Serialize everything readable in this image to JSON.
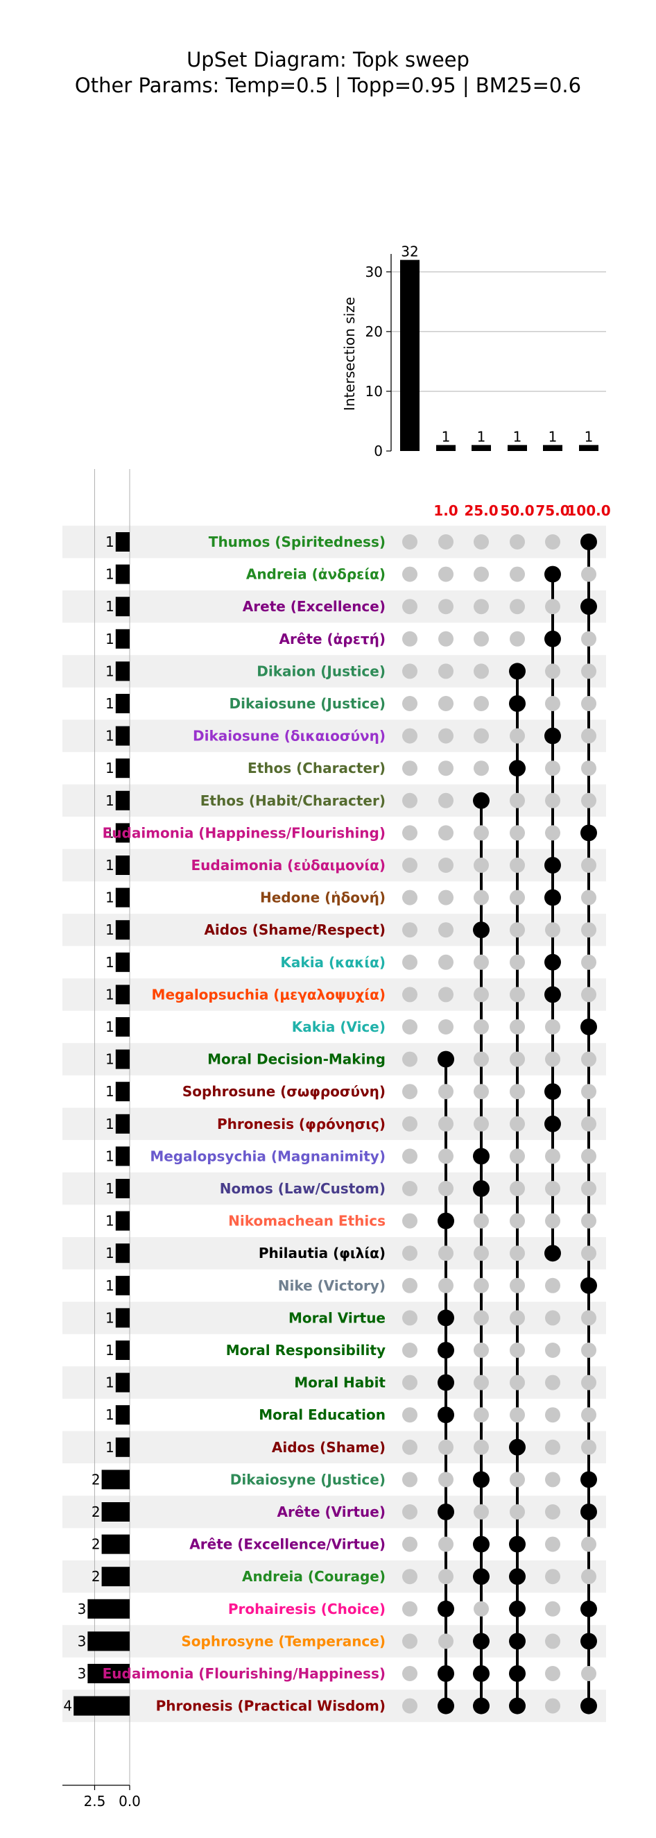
{
  "title": {
    "line1": "UpSet Diagram: Topk sweep",
    "line2": "Other Params: Temp=0.5 | Topp=0.95 | BM25=0.6"
  },
  "colors": {
    "bar": "#000000",
    "dot_active": "#000000",
    "dot_inactive": "#c8c8c8",
    "stripe": "#f0f0f0",
    "column_label": "#e8000b"
  },
  "chart_data": {
    "type": "upset",
    "intersections": {
      "ylabel": "Intersection size",
      "ylim": [
        0,
        33
      ],
      "yticks": [
        0,
        10,
        20,
        30
      ],
      "grid": true,
      "columns": [
        {
          "label": "",
          "size": 32
        },
        {
          "label": "1.0",
          "size": 1
        },
        {
          "label": "25.0",
          "size": 1
        },
        {
          "label": "50.0",
          "size": 1
        },
        {
          "label": "75.0",
          "size": 1
        },
        {
          "label": "100.0",
          "size": 1
        }
      ]
    },
    "set_sizes": {
      "xlim": [
        4.8,
        0
      ],
      "xticks": [
        "2.5",
        "0.0"
      ],
      "grid": true
    },
    "sets": [
      {
        "name": "Thumos (Spiritedness)",
        "color": "#228b22",
        "size": 1,
        "members": [
          5
        ]
      },
      {
        "name": "Andreia (ἀνδρεία)",
        "color": "#228b22",
        "size": 1,
        "members": [
          4
        ]
      },
      {
        "name": "Arete (Excellence)",
        "color": "#800080",
        "size": 1,
        "members": [
          5
        ]
      },
      {
        "name": "Arête (ἀρετή)",
        "color": "#800080",
        "size": 1,
        "members": [
          4
        ]
      },
      {
        "name": "Dikaion (Justice)",
        "color": "#2e8b57",
        "size": 1,
        "members": [
          3
        ]
      },
      {
        "name": "Dikaiosune (Justice)",
        "color": "#2e8b57",
        "size": 1,
        "members": [
          3
        ]
      },
      {
        "name": "Dikaiosune (δικαιοσύνη)",
        "color": "#9932cc",
        "size": 1,
        "members": [
          4
        ]
      },
      {
        "name": "Ethos (Character)",
        "color": "#556b2f",
        "size": 1,
        "members": [
          3
        ]
      },
      {
        "name": "Ethos (Habit/Character)",
        "color": "#556b2f",
        "size": 1,
        "members": [
          2
        ]
      },
      {
        "name": "Eudaimonia (Happiness/Flourishing)",
        "color": "#c71585",
        "size": 1,
        "members": [
          5
        ]
      },
      {
        "name": "Eudaimonia (εὐδαιμονία)",
        "color": "#c71585",
        "size": 1,
        "members": [
          4
        ]
      },
      {
        "name": "Hedone (ἡδονή)",
        "color": "#8b4513",
        "size": 1,
        "members": [
          4
        ]
      },
      {
        "name": "Aidos (Shame/Respect)",
        "color": "#800000",
        "size": 1,
        "members": [
          2
        ]
      },
      {
        "name": "Kakia (κακία)",
        "color": "#20b2aa",
        "size": 1,
        "members": [
          4
        ]
      },
      {
        "name": "Megalopsuchia (μεγαλοψυχία)",
        "color": "#ff4500",
        "size": 1,
        "members": [
          4
        ]
      },
      {
        "name": "Kakia (Vice)",
        "color": "#20b2aa",
        "size": 1,
        "members": [
          5
        ]
      },
      {
        "name": "Moral Decision-Making",
        "color": "#006400",
        "size": 1,
        "members": [
          1
        ]
      },
      {
        "name": "Sophrosune (σωφροσύνη)",
        "color": "#800000",
        "size": 1,
        "members": [
          4
        ]
      },
      {
        "name": "Phronesis (φρόνησις)",
        "color": "#8b0000",
        "size": 1,
        "members": [
          4
        ]
      },
      {
        "name": "Megalopsychia (Magnanimity)",
        "color": "#6a5acd",
        "size": 1,
        "members": [
          2
        ]
      },
      {
        "name": "Nomos (Law/Custom)",
        "color": "#483d8b",
        "size": 1,
        "members": [
          2
        ]
      },
      {
        "name": "Nikomachean Ethics",
        "color": "#ff6347",
        "size": 1,
        "members": [
          1
        ]
      },
      {
        "name": "Philautia (φιλία)",
        "color": "#000000",
        "size": 1,
        "members": [
          4
        ]
      },
      {
        "name": "Nike (Victory)",
        "color": "#708090",
        "size": 1,
        "members": [
          5
        ]
      },
      {
        "name": "Moral Virtue",
        "color": "#006400",
        "size": 1,
        "members": [
          1
        ]
      },
      {
        "name": "Moral Responsibility",
        "color": "#006400",
        "size": 1,
        "members": [
          1
        ]
      },
      {
        "name": "Moral Habit",
        "color": "#006400",
        "size": 1,
        "members": [
          1
        ]
      },
      {
        "name": "Moral Education",
        "color": "#006400",
        "size": 1,
        "members": [
          1
        ]
      },
      {
        "name": "Aidos (Shame)",
        "color": "#800000",
        "size": 1,
        "members": [
          3
        ]
      },
      {
        "name": "Dikaiosyne (Justice)",
        "color": "#2e8b57",
        "size": 2,
        "members": [
          2,
          5
        ]
      },
      {
        "name": "Arête (Virtue)",
        "color": "#800080",
        "size": 2,
        "members": [
          1,
          5
        ]
      },
      {
        "name": "Arête (Excellence/Virtue)",
        "color": "#800080",
        "size": 2,
        "members": [
          2,
          3
        ]
      },
      {
        "name": "Andreia (Courage)",
        "color": "#228b22",
        "size": 2,
        "members": [
          2,
          3
        ]
      },
      {
        "name": "Prohairesis (Choice)",
        "color": "#ff1493",
        "size": 3,
        "members": [
          1,
          3,
          5
        ]
      },
      {
        "name": "Sophrosyne (Temperance)",
        "color": "#ff8c00",
        "size": 3,
        "members": [
          2,
          3,
          5
        ]
      },
      {
        "name": "Eudaimonia (Flourishing/Happiness)",
        "color": "#c71585",
        "size": 3,
        "members": [
          1,
          2,
          3
        ]
      },
      {
        "name": "Phronesis (Practical Wisdom)",
        "color": "#8b0000",
        "size": 4,
        "members": [
          1,
          2,
          3,
          5
        ]
      }
    ]
  }
}
